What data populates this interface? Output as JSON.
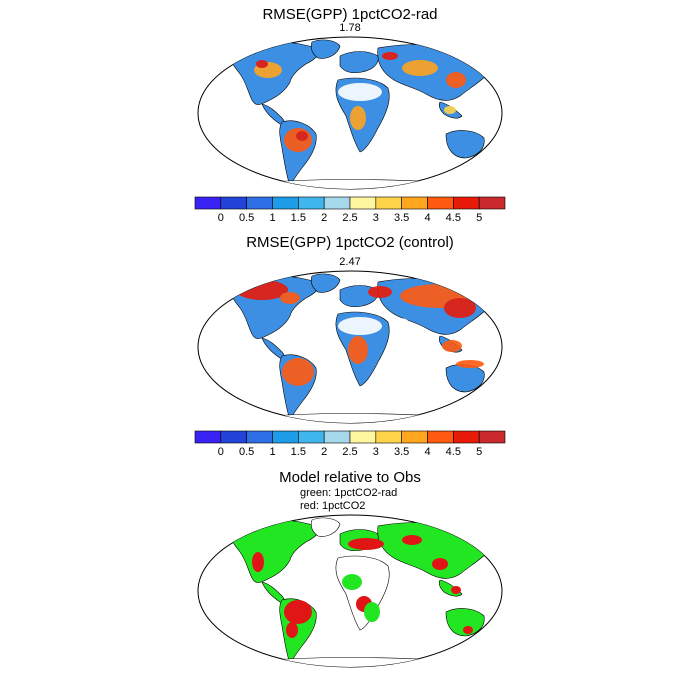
{
  "panels": [
    {
      "title": "RMSE(GPP) 1pctCO2-rad",
      "value_label": "1.78"
    },
    {
      "title": "RMSE(GPP) 1pctCO2 (control)",
      "value_label": "2.47"
    },
    {
      "title": "Model relative to Obs",
      "legend_lines": [
        "green: 1pctCO2-rad",
        "red: 1pctCO2"
      ]
    }
  ],
  "colorbar": {
    "tick_labels": [
      "0",
      "0.5",
      "1",
      "1.5",
      "2",
      "2.5",
      "3",
      "3.5",
      "4",
      "4.5",
      "5"
    ],
    "colors": [
      "#3b22f4",
      "#2244d8",
      "#2f6fe6",
      "#1f9ce8",
      "#40b6ee",
      "#a6d8ec",
      "#fff6a0",
      "#ffd44a",
      "#ffa51e",
      "#ff5a10",
      "#e81a0a",
      "#c9282c"
    ]
  },
  "palette": {
    "land_fill_map1": "#3d8fe3",
    "land_fill_map2": "#3d8fe3",
    "land_fill_map3": "#ffffff",
    "green": "#22e622",
    "red": "#e01616",
    "coast": "#000000"
  }
}
